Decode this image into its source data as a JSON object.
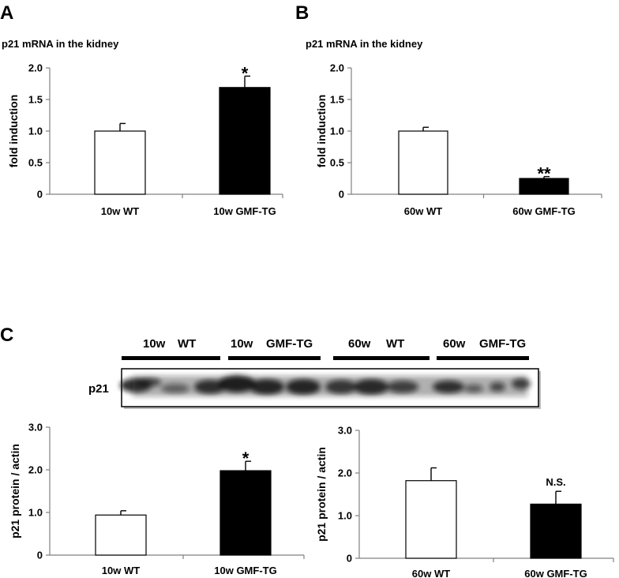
{
  "panels": {
    "a": "A",
    "b": "B",
    "c": "C"
  },
  "blot": {
    "row_label": "p21",
    "groups": [
      {
        "age": "10w",
        "genotype": "WT"
      },
      {
        "age": "10w",
        "genotype": "GMF-TG"
      },
      {
        "age": "60w",
        "genotype": "WT"
      },
      {
        "age": "60w",
        "genotype": "GMF-TG"
      }
    ],
    "lanes_per_group": 3
  },
  "chart_data": [
    {
      "id": "A",
      "type": "bar",
      "title": "p21 mRNA in the kidney",
      "ylabel": "fold induction",
      "categories": [
        "10w WT",
        "10w GMF-TG"
      ],
      "values": [
        1.0,
        1.69
      ],
      "errors": [
        0.12,
        0.18
      ],
      "annotations": [
        "",
        "*"
      ],
      "bar_colors": [
        "#ffffff",
        "#000000"
      ],
      "ylim": [
        0,
        2.0
      ],
      "yticks": [
        0,
        0.5,
        1.0,
        1.5,
        2.0
      ],
      "ytick_labels": [
        "0",
        "0.5",
        "1.0",
        "1.5",
        "2.0"
      ]
    },
    {
      "id": "B",
      "type": "bar",
      "title": "p21 mRNA in the kidney",
      "ylabel": "fold induction",
      "categories": [
        "60w WT",
        "60w GMF-TG"
      ],
      "values": [
        1.0,
        0.25
      ],
      "errors": [
        0.06,
        0.03
      ],
      "annotations": [
        "",
        "**"
      ],
      "bar_colors": [
        "#ffffff",
        "#000000"
      ],
      "ylim": [
        0,
        2.0
      ],
      "yticks": [
        0,
        0.5,
        1.0,
        1.5,
        2.0
      ],
      "ytick_labels": [
        "0",
        "0.5",
        "1.0",
        "1.5",
        "2.0"
      ]
    },
    {
      "id": "C-left",
      "type": "bar",
      "title": "",
      "ylabel": "p21 protein / actin",
      "categories": [
        "10w WT",
        "10w GMF-TG"
      ],
      "values": [
        0.94,
        1.98
      ],
      "errors": [
        0.1,
        0.22
      ],
      "annotations": [
        "",
        "*"
      ],
      "bar_colors": [
        "#ffffff",
        "#000000"
      ],
      "ylim": [
        0,
        3.0
      ],
      "yticks": [
        0,
        1.0,
        2.0,
        3.0
      ],
      "ytick_labels": [
        "0",
        "1.0",
        "2.0",
        "3.0"
      ]
    },
    {
      "id": "C-right",
      "type": "bar",
      "title": "",
      "ylabel": "p21 protein / actin",
      "categories": [
        "60w WT",
        "60w GMF-TG"
      ],
      "values": [
        1.82,
        1.27
      ],
      "errors": [
        0.3,
        0.3
      ],
      "annotations": [
        "",
        "N.S."
      ],
      "bar_colors": [
        "#ffffff",
        "#000000"
      ],
      "ylim": [
        0,
        3.0
      ],
      "yticks": [
        0,
        1.0,
        2.0,
        3.0
      ],
      "ytick_labels": [
        "0",
        "1.0",
        "2.0",
        "3.0"
      ]
    }
  ]
}
